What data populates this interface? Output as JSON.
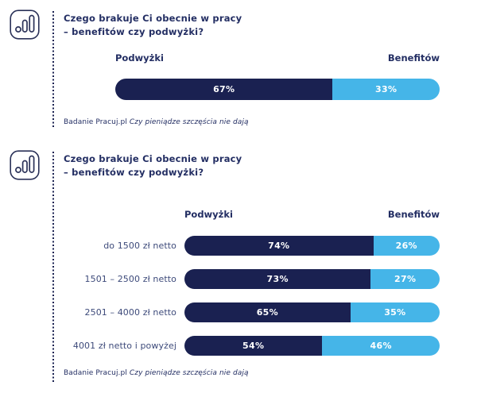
{
  "colors": {
    "navy": "#1a2151",
    "blue": "#45b5e8",
    "title_text": "#232e63",
    "label_text": "#3d4a7a"
  },
  "sections": [
    {
      "title_line1": "Czego brakuje Ci obecnie w pracy",
      "title_line2": "– benefitów czy podwyżki?",
      "legend_left": "Podwyżki",
      "legend_right": "Benefitów",
      "source_regular": "Badanie Pracuj.pl",
      "source_italic": "Czy pieniądze szczęścia nie dają"
    },
    {
      "title_line1": "Czego brakuje Ci obecnie w pracy",
      "title_line2": "– benefitów czy podwyżki?",
      "legend_left": "Podwyżki",
      "legend_right": "Benefitów",
      "source_regular": "Badanie Pracuj.pl",
      "source_italic": "Czy pieniądze szczęścia nie dają"
    }
  ],
  "chart_data": [
    {
      "type": "bar",
      "subtype": "horizontal-stacked",
      "title": "Czego brakuje Ci obecnie w pracy – benefitów czy podwyżki?",
      "categories": [
        ""
      ],
      "series": [
        {
          "name": "Podwyżki",
          "values": [
            67
          ],
          "color": "#1a2151"
        },
        {
          "name": "Benefitów",
          "values": [
            33
          ],
          "color": "#45b5e8"
        }
      ],
      "unit": "%",
      "xlim": [
        0,
        100
      ],
      "value_labels": "inside-center",
      "legend_position": "above-bar-edges",
      "source": "Badanie Pracuj.pl Czy pieniądze szczęścia nie dają"
    },
    {
      "type": "bar",
      "subtype": "horizontal-stacked",
      "title": "Czego brakuje Ci obecnie w pracy – benefitów czy podwyżki?",
      "categories": [
        "do 1500 zł netto",
        "1501 – 2500 zł netto",
        "2501 – 4000 zł netto",
        "4001 zł netto i powyżej"
      ],
      "series": [
        {
          "name": "Podwyżki",
          "values": [
            74,
            73,
            65,
            54
          ],
          "color": "#1a2151"
        },
        {
          "name": "Benefitów",
          "values": [
            26,
            27,
            35,
            46
          ],
          "color": "#45b5e8"
        }
      ],
      "unit": "%",
      "xlim": [
        0,
        100
      ],
      "value_labels": "inside-center",
      "legend_position": "above-bar-edges",
      "source": "Badanie Pracuj.pl Czy pieniądze szczęścia nie dają"
    }
  ]
}
